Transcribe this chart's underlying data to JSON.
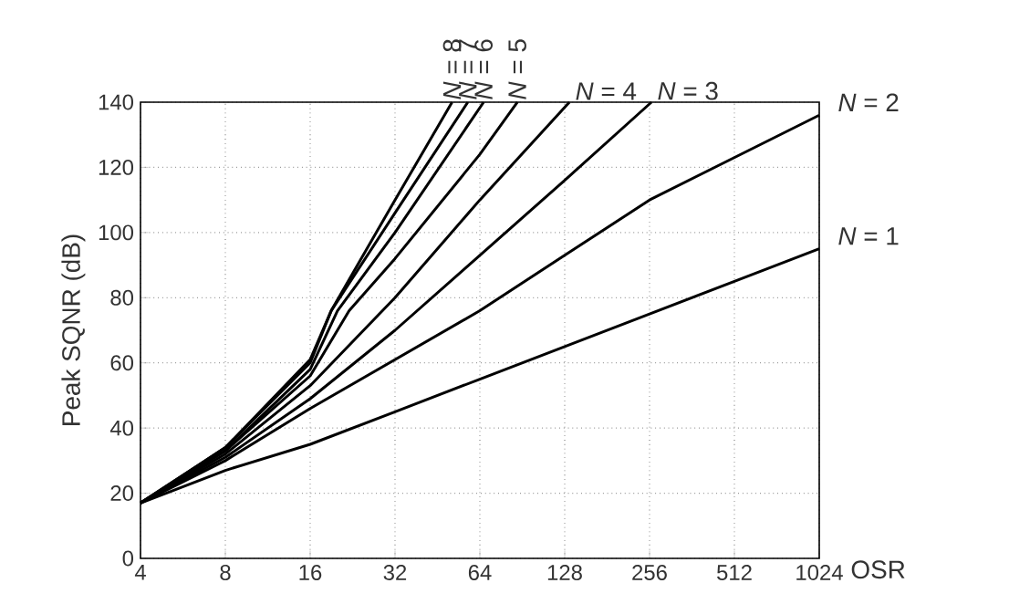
{
  "chart_data": {
    "type": "line",
    "xlabel": "OSR",
    "ylabel": "Peak SQNR (dB)",
    "log": "x",
    "xlim": [
      4,
      1024
    ],
    "ylim": [
      0,
      140
    ],
    "xticks": [
      4,
      8,
      16,
      32,
      64,
      128,
      256,
      512,
      1024
    ],
    "yticks": [
      0,
      20,
      40,
      60,
      80,
      100,
      120,
      140
    ],
    "grid": true,
    "legend": false,
    "marker": "none",
    "line_style": "solid",
    "series": [
      {
        "name": "*N* = 1",
        "color": "#000000",
        "x": [
          4,
          8,
          16,
          32,
          64,
          128,
          256,
          512,
          1024
        ],
        "values": [
          17,
          27,
          35,
          45,
          55,
          65,
          75,
          85,
          95
        ]
      },
      {
        "name": "*N* = 2",
        "color": "#000000",
        "x": [
          4,
          8,
          16,
          32,
          64,
          128,
          256,
          512,
          1024
        ],
        "values": [
          17,
          30,
          46,
          61,
          76,
          93,
          110,
          123,
          136
        ]
      },
      {
        "name": "*N* = 3",
        "color": "#000000",
        "x": [
          4,
          8,
          16,
          32,
          64,
          128,
          260
        ],
        "values": [
          17,
          31,
          49,
          70,
          93,
          116,
          140
        ]
      },
      {
        "name": "*N* = 4",
        "color": "#000000",
        "x": [
          4,
          8,
          16,
          32,
          64,
          133
        ],
        "values": [
          17,
          32,
          53,
          80,
          110,
          140
        ]
      },
      {
        "name": "*N* = 5",
        "color": "#000000",
        "x": [
          4,
          8,
          16,
          22,
          32,
          64,
          87
        ],
        "values": [
          17,
          33,
          56,
          76,
          92,
          124,
          140
        ]
      },
      {
        "name": "*N* = 6",
        "color": "#000000",
        "x": [
          4,
          8,
          16,
          20,
          32,
          66
        ],
        "values": [
          17,
          33,
          58,
          76,
          100,
          140
        ]
      },
      {
        "name": "*N* = 7",
        "color": "#000000",
        "x": [
          4,
          8,
          16,
          19,
          32,
          58
        ],
        "values": [
          17,
          34,
          60,
          76,
          106,
          140
        ]
      },
      {
        "name": "*N* = 8",
        "color": "#000000",
        "x": [
          4,
          8,
          16,
          19,
          32,
          51
        ],
        "values": [
          17,
          34,
          61,
          76,
          110,
          140
        ]
      }
    ]
  }
}
